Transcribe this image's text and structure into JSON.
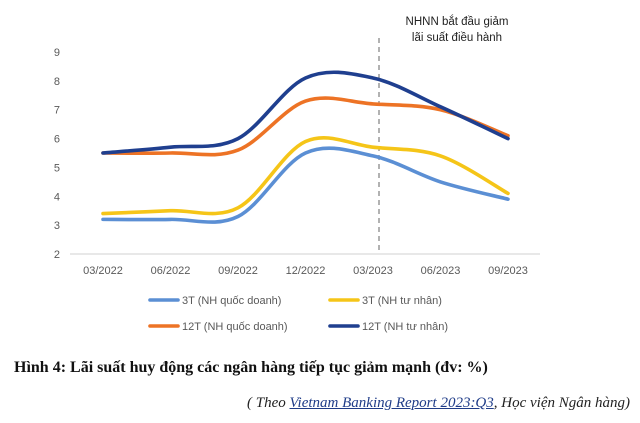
{
  "chart_data": {
    "type": "line",
    "categories": [
      "03/2022",
      "06/2022",
      "09/2022",
      "12/2022",
      "03/2023",
      "06/2023",
      "09/2023"
    ],
    "ylim": [
      2,
      9
    ],
    "yticks": [
      "2",
      "3",
      "4",
      "5",
      "6",
      "7",
      "8",
      "9"
    ],
    "grid": false,
    "legend_position": "bottom",
    "series": [
      {
        "name": "3T (NH quốc doanh)",
        "color": "#5b8fd4",
        "values": [
          3.2,
          3.2,
          3.3,
          5.5,
          5.4,
          4.5,
          3.9
        ]
      },
      {
        "name": "3T (NH tư nhân)",
        "color": "#f5c518",
        "values": [
          3.4,
          3.5,
          3.6,
          5.9,
          5.7,
          5.4,
          4.1
        ]
      },
      {
        "name": "12T (NH quốc doanh)",
        "color": "#ed7325",
        "values": [
          5.5,
          5.5,
          5.6,
          7.3,
          7.2,
          7.0,
          6.1
        ]
      },
      {
        "name": "12T (NH tư nhân)",
        "color": "#1f3f8f",
        "values": [
          5.5,
          5.7,
          6.0,
          8.1,
          8.1,
          7.1,
          6.0
        ]
      }
    ],
    "annotation": {
      "x_category": "03/2023",
      "lines": [
        "NHNN bắt đầu giảm",
        "lãi suất điều hành"
      ]
    }
  },
  "caption": {
    "title": "Hình 4: Lãi suất huy động các ngân hàng tiếp tục giảm mạnh (đv: %)",
    "source_prefix": "( Theo ",
    "source_link": "Vietnam Banking Report 2023:Q3",
    "source_suffix": ", Học viện Ngân hàng)"
  }
}
